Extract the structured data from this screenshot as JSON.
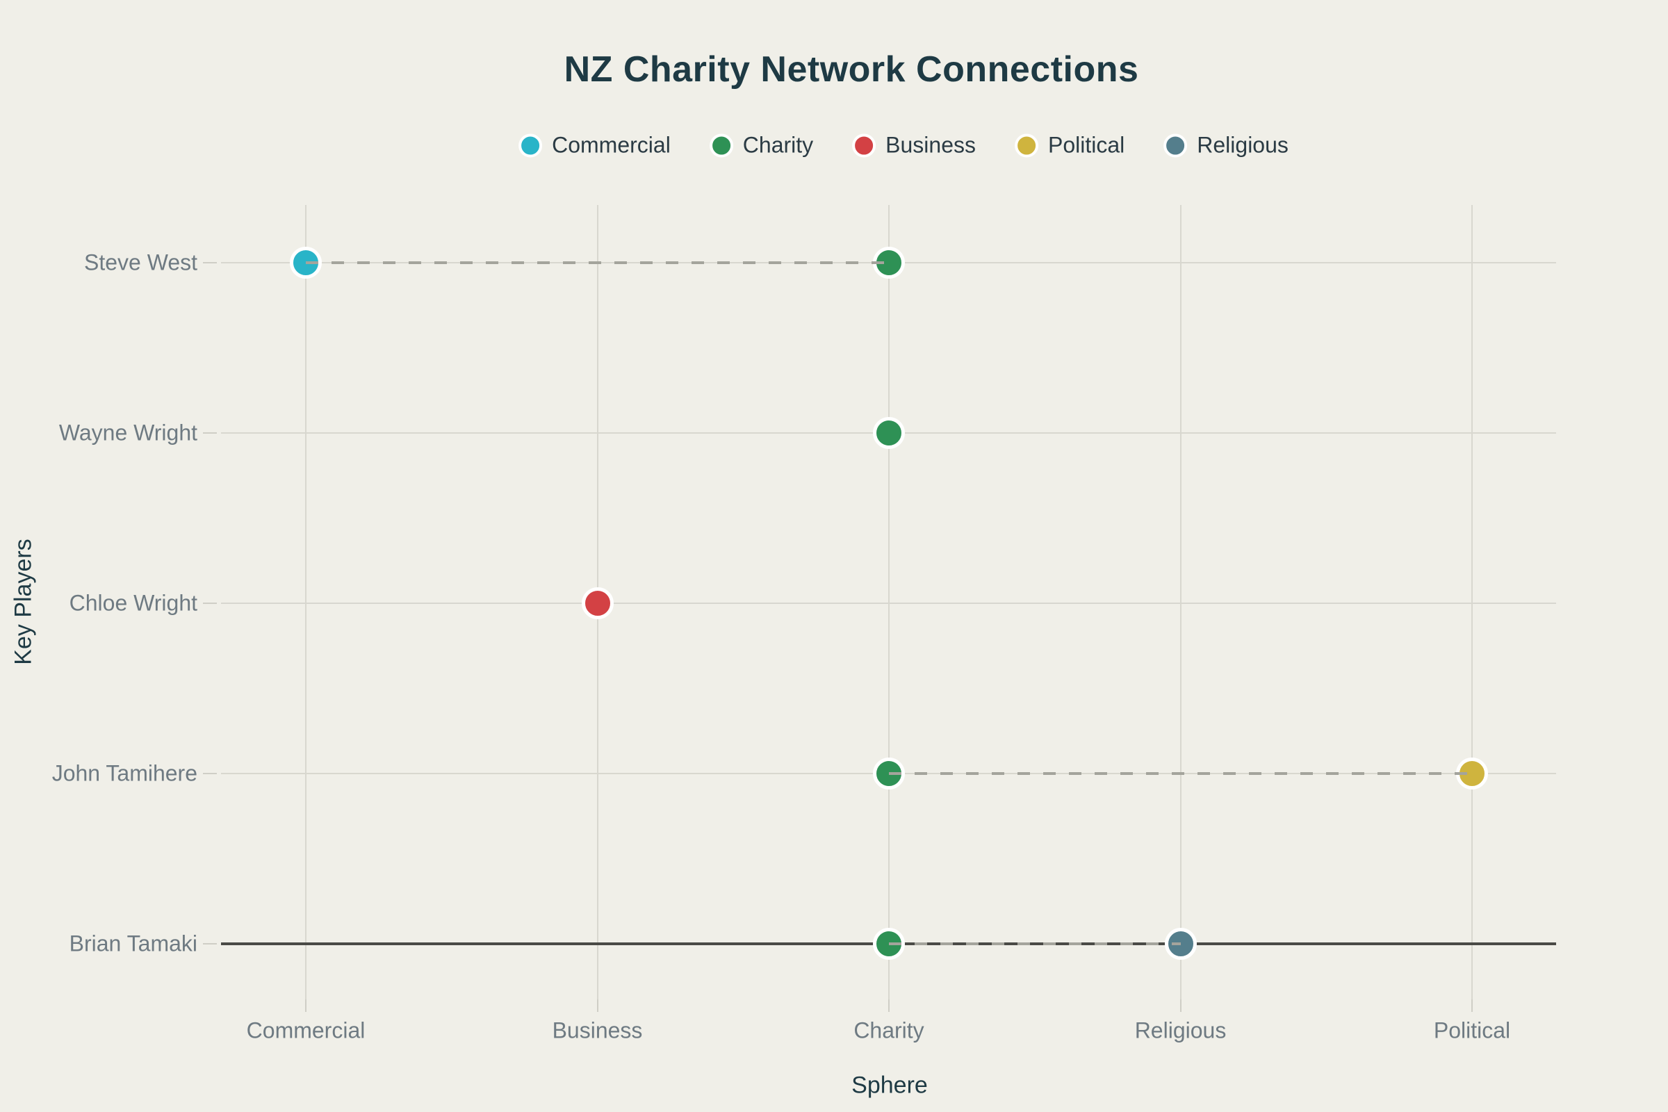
{
  "title": "NZ Charity Network Connections",
  "legend": {
    "items": [
      {
        "label": "Commercial",
        "color": "#29b4c8"
      },
      {
        "label": "Charity",
        "color": "#2e9155"
      },
      {
        "label": "Business",
        "color": "#d34144"
      },
      {
        "label": "Political",
        "color": "#cfb43e"
      },
      {
        "label": "Religious",
        "color": "#547e8c"
      }
    ]
  },
  "chart_data": {
    "type": "scatter",
    "title": "NZ Charity Network Connections",
    "xlabel": "Sphere",
    "ylabel": "Key Players",
    "x_categories": [
      "Commercial",
      "Business",
      "Charity",
      "Religious",
      "Political"
    ],
    "y_categories_top_to_bottom": [
      "Steve West",
      "Wayne Wright",
      "Chloe Wright",
      "John Tamihere",
      "Brian Tamaki"
    ],
    "sphere_colors": {
      "Commercial": "#29b4c8",
      "Charity": "#2e9155",
      "Business": "#d34144",
      "Political": "#cfb43e",
      "Religious": "#547e8c"
    },
    "points": [
      {
        "person": "Steve West",
        "sphere": "Commercial"
      },
      {
        "person": "Steve West",
        "sphere": "Charity"
      },
      {
        "person": "Wayne Wright",
        "sphere": "Charity"
      },
      {
        "person": "Chloe Wright",
        "sphere": "Business"
      },
      {
        "person": "John Tamihere",
        "sphere": "Charity"
      },
      {
        "person": "John Tamihere",
        "sphere": "Political"
      },
      {
        "person": "Brian Tamaki",
        "sphere": "Charity"
      },
      {
        "person": "Brian Tamaki",
        "sphere": "Religious"
      }
    ],
    "connections": [
      {
        "person": "Steve West",
        "from": "Commercial",
        "to": "Charity",
        "style": "dashed"
      },
      {
        "person": "John Tamihere",
        "from": "Charity",
        "to": "Political",
        "style": "dashed"
      },
      {
        "person": "Brian Tamaki",
        "from": "Charity",
        "to": "Religious",
        "style": "dashed"
      }
    ],
    "layout": {
      "grid": true,
      "legend_position": "top-center",
      "y_zeroline_category": "Brian Tamaki",
      "marker_border_color": "#ffffff",
      "connector_color": "#a4a49c",
      "background": "#f0efe8",
      "gridline_color": "#d8d7cf",
      "zeroline_color": "#4a4a46",
      "tick_label_color": "#6e7a82",
      "axis_title_color": "#1e3a44",
      "title_color": "#1e3a44"
    }
  }
}
